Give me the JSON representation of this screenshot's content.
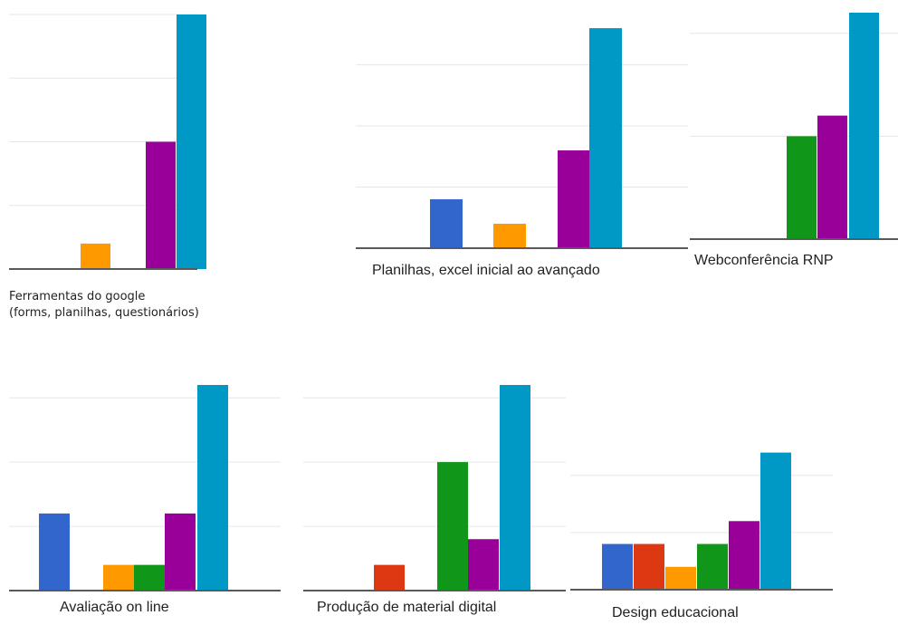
{
  "colors": {
    "blue": "#3366cc",
    "red": "#dc3912",
    "orange": "#ff9900",
    "green": "#109618",
    "purple": "#990099",
    "cyan": "#0099c6"
  },
  "chart_data": [
    {
      "type": "bar",
      "title": "Ferramentas do google (forms, planilhas, questionários)",
      "title_lines": [
        "Ferramentas do google",
        "(forms, planilhas, questionários)"
      ],
      "categories": [
        "1",
        "2",
        "3",
        "4",
        "5",
        "6"
      ],
      "values": [
        0,
        0,
        1,
        0,
        5,
        10
      ],
      "ylim": [
        0,
        10
      ],
      "grid": true
    },
    {
      "type": "bar",
      "title": "Planilhas, excel inicial ao avançado",
      "categories": [
        "1",
        "2",
        "3",
        "4",
        "5",
        "6"
      ],
      "values": [
        2,
        0,
        1,
        0,
        4,
        9
      ],
      "ylim": [
        0,
        9.3
      ],
      "grid": true
    },
    {
      "type": "bar",
      "title": "Webconferência RNP",
      "categories": [
        "1",
        "2",
        "3",
        "4",
        "5",
        "6"
      ],
      "values": [
        0,
        0,
        0,
        5,
        6,
        11
      ],
      "ylim": [
        0,
        11
      ],
      "grid": true
    },
    {
      "type": "bar",
      "title": "Avaliação on line",
      "categories": [
        "1",
        "2",
        "3",
        "4",
        "5",
        "6"
      ],
      "values": [
        3,
        0,
        1,
        1,
        3,
        8
      ],
      "ylim": [
        0,
        8
      ],
      "grid": true
    },
    {
      "type": "bar",
      "title": "Produção de material digital",
      "categories": [
        "1",
        "2",
        "3",
        "4",
        "5",
        "6"
      ],
      "values": [
        0,
        1,
        0,
        5,
        2,
        8
      ],
      "ylim": [
        0,
        8
      ],
      "grid": true
    },
    {
      "type": "bar",
      "title": "Design educacional",
      "categories": [
        "1",
        "2",
        "3",
        "4",
        "5",
        "6"
      ],
      "values": [
        2,
        2,
        1,
        2,
        3,
        6
      ],
      "ylim": [
        0,
        6.5
      ],
      "grid": true
    }
  ]
}
